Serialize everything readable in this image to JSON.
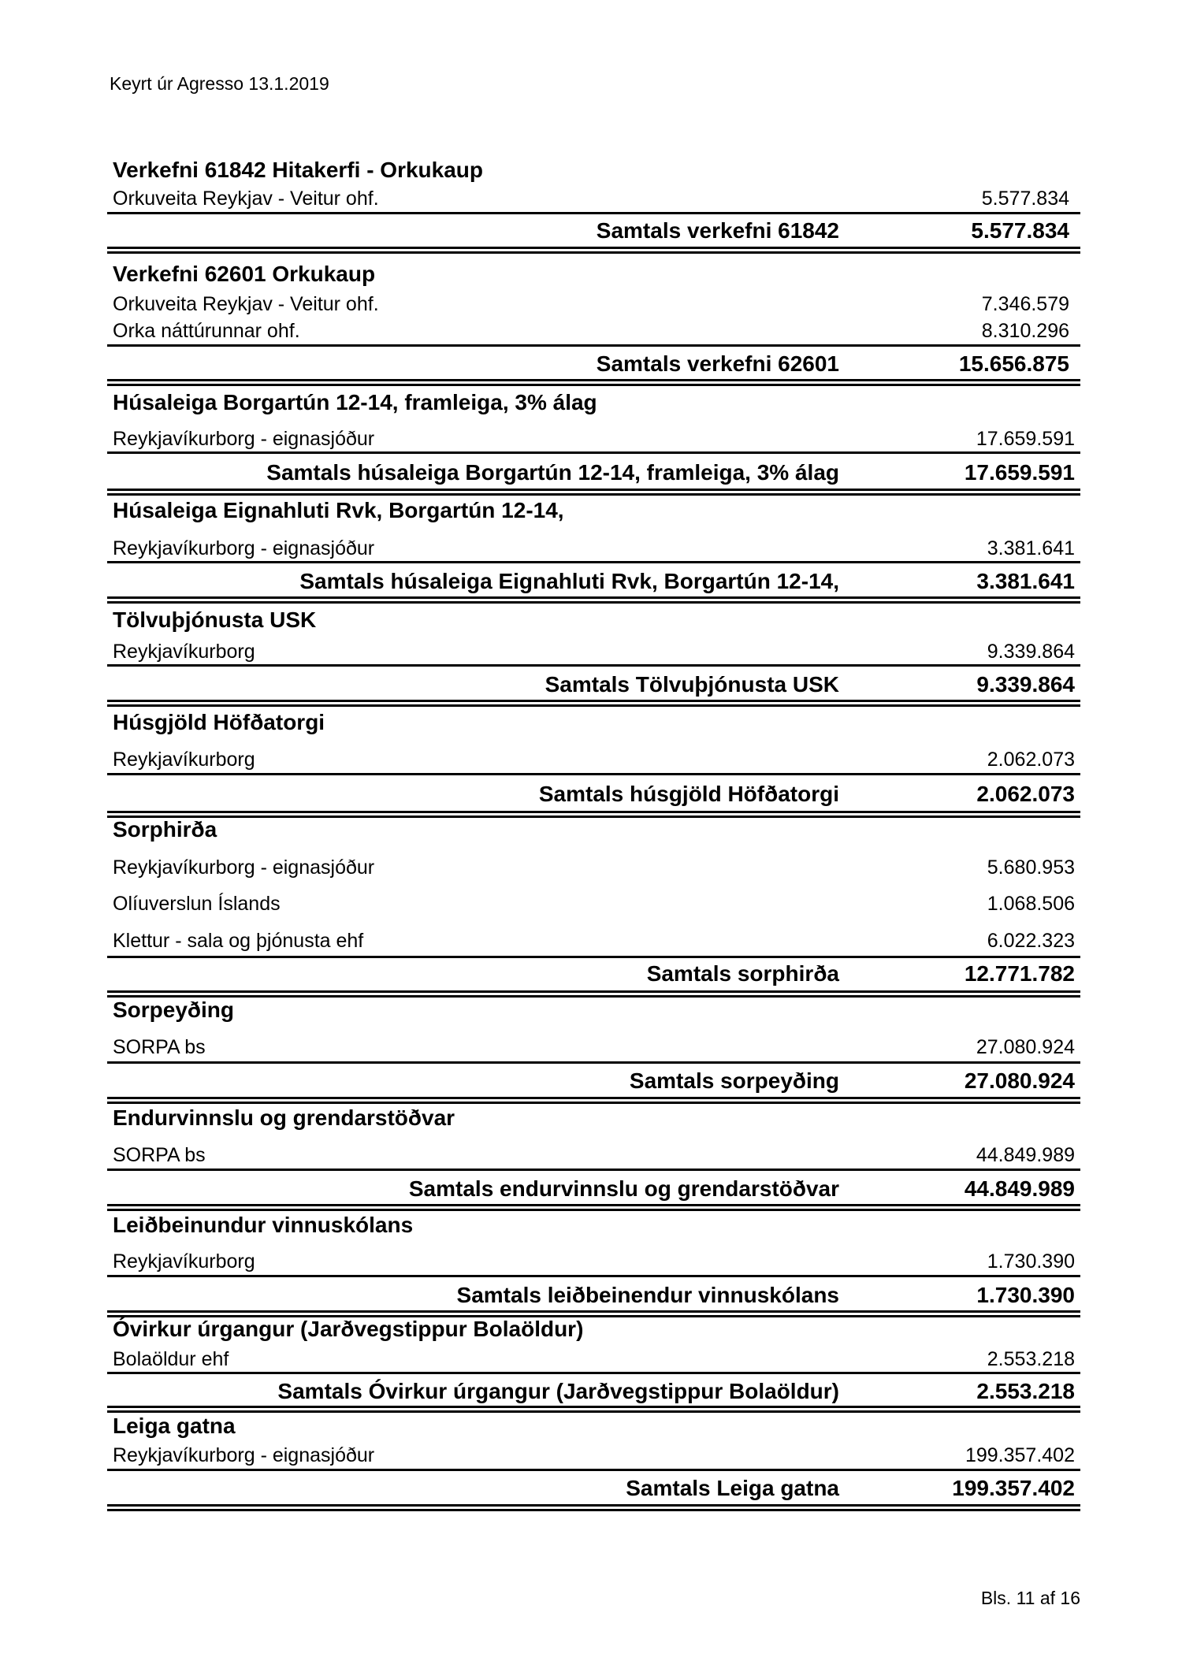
{
  "header": {
    "text": "Keyrt úr Agresso 13.1.2019"
  },
  "footer": {
    "page": "Bls. 11 af 16"
  },
  "sections": [
    {
      "title": "Verkefni 61842 Hitakerfi - Orkukaup",
      "items": [
        {
          "name": "Orkuveita Reykjav - Veitur ohf.",
          "amount": "5.577.834"
        }
      ],
      "total_label": "Samtals verkefni 61842",
      "total": "5.577.834"
    },
    {
      "title": "Verkefni 62601 Orkukaup",
      "items": [
        {
          "name": "Orkuveita Reykjav - Veitur ohf.",
          "amount": "7.346.579"
        },
        {
          "name": "Orka náttúrunnar ohf.",
          "amount": "8.310.296"
        }
      ],
      "total_label": "Samtals verkefni 62601",
      "total": "15.656.875"
    },
    {
      "title": "Húsaleiga Borgartún 12-14, framleiga, 3% álag",
      "items": [
        {
          "name": "Reykjavíkurborg - eignasjóður",
          "amount": "17.659.591"
        }
      ],
      "total_label": "Samtals húsaleiga Borgartún 12-14, framleiga, 3% álag",
      "total": "17.659.591"
    },
    {
      "title": "Húsaleiga Eignahluti Rvk, Borgartún 12-14,",
      "items": [
        {
          "name": "Reykjavíkurborg - eignasjóður",
          "amount": "3.381.641"
        }
      ],
      "total_label": "Samtals húsaleiga Eignahluti Rvk, Borgartún 12-14,",
      "total": "3.381.641"
    },
    {
      "title": "Tölvuþjónusta USK",
      "items": [
        {
          "name": "Reykjavíkurborg",
          "amount": "9.339.864"
        }
      ],
      "total_label": "Samtals Tölvuþjónusta USK",
      "total": "9.339.864"
    },
    {
      "title": "Húsgjöld Höfðatorgi",
      "items": [
        {
          "name": "Reykjavíkurborg",
          "amount": "2.062.073"
        }
      ],
      "total_label": "Samtals húsgjöld Höfðatorgi",
      "total": "2.062.073"
    },
    {
      "title": "Sorphirða",
      "items": [
        {
          "name": "Reykjavíkurborg - eignasjóður",
          "amount": "5.680.953"
        },
        {
          "name": "Olíuverslun Íslands",
          "amount": "1.068.506"
        },
        {
          "name": "Klettur - sala og þjónusta ehf",
          "amount": "6.022.323"
        }
      ],
      "total_label": "Samtals sorphirða",
      "total": "12.771.782"
    },
    {
      "title": "Sorpeyðing",
      "items": [
        {
          "name": "SORPA bs",
          "amount": "27.080.924"
        }
      ],
      "total_label": "Samtals sorpeyðing",
      "total": "27.080.924"
    },
    {
      "title": "Endurvinnslu og grendarstöðvar",
      "items": [
        {
          "name": "SORPA bs",
          "amount": "44.849.989"
        }
      ],
      "total_label": "Samtals endurvinnslu og grendarstöðvar",
      "total": "44.849.989"
    },
    {
      "title": "Leiðbeinundur vinnuskólans",
      "items": [
        {
          "name": "Reykjavíkurborg",
          "amount": "1.730.390"
        }
      ],
      "total_label": "Samtals leiðbeinendur vinnuskólans",
      "total": "1.730.390"
    },
    {
      "title": "Óvirkur úrgangur (Jarðvegstippur Bolaöldur)",
      "items": [
        {
          "name": "Bolaöldur ehf",
          "amount": "2.553.218"
        }
      ],
      "total_label": "Samtals Óvirkur úrgangur (Jarðvegstippur Bolaöldur)",
      "total": "2.553.218"
    },
    {
      "title": "Leiga gatna",
      "items": [
        {
          "name": "Reykjavíkurborg - eignasjóður",
          "amount": "199.357.402"
        }
      ],
      "total_label": "Samtals Leiga gatna",
      "total": "199.357.402"
    }
  ]
}
